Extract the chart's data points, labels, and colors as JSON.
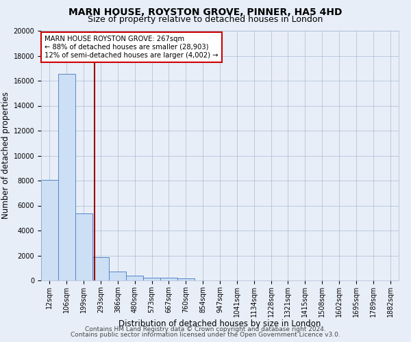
{
  "title": "MARN HOUSE, ROYSTON GROVE, PINNER, HA5 4HD",
  "subtitle": "Size of property relative to detached houses in London",
  "xlabel": "Distribution of detached houses by size in London",
  "ylabel": "Number of detached properties",
  "footer_line1": "Contains HM Land Registry data © Crown copyright and database right 2024.",
  "footer_line2": "Contains public sector information licensed under the Open Government Licence v3.0.",
  "bin_labels": [
    "12sqm",
    "106sqm",
    "199sqm",
    "293sqm",
    "386sqm",
    "480sqm",
    "573sqm",
    "667sqm",
    "760sqm",
    "854sqm",
    "947sqm",
    "1041sqm",
    "1134sqm",
    "1228sqm",
    "1321sqm",
    "1415sqm",
    "1508sqm",
    "1602sqm",
    "1695sqm",
    "1789sqm",
    "1882sqm"
  ],
  "bar_values": [
    8050,
    16550,
    5350,
    1850,
    700,
    380,
    230,
    200,
    150,
    0,
    0,
    0,
    0,
    0,
    0,
    0,
    0,
    0,
    0,
    0,
    0
  ],
  "bar_color": "#ccdff5",
  "bar_edge_color": "#5585c5",
  "vline_x": 2.65,
  "vline_color": "#990000",
  "annotation_text": "MARN HOUSE ROYSTON GROVE: 267sqm\n← 88% of detached houses are smaller (28,903)\n12% of semi-detached houses are larger (4,002) →",
  "annotation_box_color": "#ffffff",
  "annotation_box_edge": "#cc0000",
  "ylim": [
    0,
    20000
  ],
  "yticks": [
    0,
    2000,
    4000,
    6000,
    8000,
    10000,
    12000,
    14000,
    16000,
    18000,
    20000
  ],
  "background_color": "#e8eef8",
  "plot_bg_color": "#e8eef8",
  "title_fontsize": 10,
  "subtitle_fontsize": 9,
  "axis_label_fontsize": 8.5,
  "tick_fontsize": 7,
  "footer_fontsize": 6.5
}
